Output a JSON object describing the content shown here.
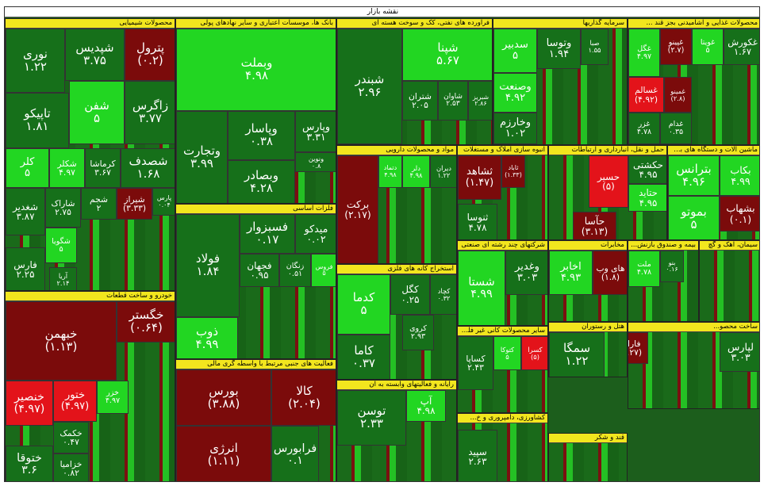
{
  "title": "نقشه بازار",
  "sectors": [
    {
      "name": "محصولات شیمیایی",
      "tiles": [
        {
          "name": "پترول",
          "change": "(۰.۲)",
          "color": "#7b0b0b"
        },
        {
          "name": "شپدیس",
          "change": "۳.۷۵",
          "color": "#16701a"
        },
        {
          "name": "نوری",
          "change": "۱.۲۲",
          "color": "#16701a"
        },
        {
          "name": "تاپیکو",
          "change": "۱.۸۱",
          "color": "#16701a"
        },
        {
          "name": "شفن",
          "change": "۵",
          "color": "#22d622"
        },
        {
          "name": "زاگرس",
          "change": "۳.۷۷",
          "color": "#16701a"
        },
        {
          "name": "کلر",
          "change": "۵",
          "color": "#22d622"
        },
        {
          "name": "شکلر",
          "change": "۴.۹۷",
          "color": "#22d622"
        },
        {
          "name": "کرماشا",
          "change": "۳.۶۷",
          "color": "#16701a"
        },
        {
          "name": "شصدف",
          "change": "۱.۶۸",
          "color": "#16701a"
        },
        {
          "name": "شغدیر",
          "change": "۳.۸۷",
          "color": "#16701a"
        },
        {
          "name": "شاراک",
          "change": "۲.۷۵",
          "color": "#16701a"
        },
        {
          "name": "شجم",
          "change": "۲",
          "color": "#16701a"
        },
        {
          "name": "شیراز",
          "change": "(۳.۳۳)",
          "color": "#7b0b0b"
        },
        {
          "name": "پارس",
          "change": "۰.۰۴",
          "color": "#16701a"
        },
        {
          "name": "شگویا",
          "change": "۵",
          "color": "#22d622"
        },
        {
          "name": "فارس",
          "change": "۲.۲۵",
          "color": "#16701a"
        },
        {
          "name": "آریا",
          "change": "۲.۱۴",
          "color": "#16701a"
        }
      ]
    },
    {
      "name": "بانک ها، موسسات اعتباری و سایر نهادهای پولی",
      "tiles": [
        {
          "name": "وبملت",
          "change": "۴.۹۸",
          "color": "#22d622"
        },
        {
          "name": "وتجارت",
          "change": "۳.۹۹",
          "color": "#16701a"
        },
        {
          "name": "وپاسار",
          "change": "۰.۳۸",
          "color": "#16701a"
        },
        {
          "name": "وپارس",
          "change": "۳.۳۱",
          "color": "#16701a"
        },
        {
          "name": "وبصادر",
          "change": "۴.۲۸",
          "color": "#16701a"
        },
        {
          "name": "ونوین",
          "change": "۰.۸",
          "color": "#16701a"
        }
      ]
    },
    {
      "name": "فراورده های نفتی، کک و سوخت هسته ای",
      "tiles": [
        {
          "name": "شبندر",
          "change": "۲.۹۶",
          "color": "#16701a"
        },
        {
          "name": "شپنا",
          "change": "۵.۶۷",
          "color": "#22d622"
        },
        {
          "name": "شتران",
          "change": "۲.۰۵",
          "color": "#16701a"
        },
        {
          "name": "شاوان",
          "change": "۲.۵۳",
          "color": "#16701a"
        },
        {
          "name": "شبریز",
          "change": "۲.۸۶",
          "color": "#16701a"
        }
      ]
    },
    {
      "name": "سرمایه گذاریها",
      "tiles": [
        {
          "name": "سدبیر",
          "change": "۵",
          "color": "#22d622"
        },
        {
          "name": "وتوسا",
          "change": "۱.۹۴",
          "color": "#16701a"
        },
        {
          "name": "صبا",
          "change": "۱.۵۵",
          "color": "#16701a"
        },
        {
          "name": "وصنعت",
          "change": "۴.۹۲",
          "color": "#22d622"
        },
        {
          "name": "وخارزم",
          "change": "۱.۰۲",
          "color": "#16701a"
        }
      ]
    },
    {
      "name": "محصولات غذایی و آشامیدنی بجز قند ...",
      "tiles": [
        {
          "name": "غگل",
          "change": "۴.۹۷",
          "color": "#22d622"
        },
        {
          "name": "غپینو",
          "change": "(۲.۷)",
          "color": "#7b0b0b"
        },
        {
          "name": "غویتا",
          "change": "۵",
          "color": "#22d622"
        },
        {
          "name": "غکورش",
          "change": "۱.۶۷",
          "color": "#16701a"
        },
        {
          "name": "غسالم",
          "change": "(۴.۹۲)",
          "color": "#e3131a"
        },
        {
          "name": "غمینو",
          "change": "(۲.۸)",
          "color": "#7b0b0b"
        },
        {
          "name": "غزر",
          "change": "۴.۷۸",
          "color": "#16701a"
        },
        {
          "name": "غدام",
          "change": "۰.۳۵",
          "color": "#16701a"
        }
      ]
    },
    {
      "name": "فلزات اساسی",
      "tiles": [
        {
          "name": "فولاد",
          "change": "۱.۸۴",
          "color": "#16701a"
        },
        {
          "name": "فسبزوار",
          "change": "۰.۱۷",
          "color": "#16701a"
        },
        {
          "name": "میدکو",
          "change": "۰.۰۲",
          "color": "#16701a"
        },
        {
          "name": "فجهان",
          "change": "۰.۹۵",
          "color": "#16701a"
        },
        {
          "name": "زنگان",
          "change": "۰.۵۱",
          "color": "#16701a"
        },
        {
          "name": "فروس",
          "change": "۵",
          "color": "#22d622"
        },
        {
          "name": "ذوب",
          "change": "۴.۹۹",
          "color": "#22d622"
        }
      ]
    },
    {
      "name": "خودرو و ساخت قطعات",
      "tiles": [
        {
          "name": "خبهمن",
          "change": "(۱.۱۳)",
          "color": "#7b0b0b"
        },
        {
          "name": "خگستر",
          "change": "(۰.۶۴)",
          "color": "#7b0b0b"
        },
        {
          "name": "خنصیر",
          "change": "(۴.۹۷)",
          "color": "#e3131a"
        },
        {
          "name": "ختور",
          "change": "(۴.۹۷)",
          "color": "#e3131a"
        },
        {
          "name": "خزر",
          "change": "۴.۹۷",
          "color": "#22d622"
        },
        {
          "name": "خکمک",
          "change": "۰.۴۷",
          "color": "#16701a"
        },
        {
          "name": "ختوقا",
          "change": "۳.۶",
          "color": "#16701a"
        },
        {
          "name": "خزامیا",
          "change": "۰.۸۲",
          "color": "#16701a"
        }
      ]
    },
    {
      "name": "فعالیت های جنبی مرتبط با واسطه گری مالی",
      "tiles": [
        {
          "name": "بورس",
          "change": "(۳.۸۸)",
          "color": "#7b0b0b"
        },
        {
          "name": "کالا",
          "change": "(۲.۰۴)",
          "color": "#7b0b0b"
        },
        {
          "name": "انرژی",
          "change": "(۱.۱۱)",
          "color": "#7b0b0b"
        },
        {
          "name": "فرابورس",
          "change": "۰.۱",
          "color": "#16701a"
        }
      ]
    },
    {
      "name": "مواد و محصولات دارویی",
      "tiles": [
        {
          "name": "برکت",
          "change": "(۲.۱۷)",
          "color": "#7b0b0b"
        },
        {
          "name": "دتماد",
          "change": "۴.۹۸",
          "color": "#22d622"
        },
        {
          "name": "دلر",
          "change": "۴.۹۸",
          "color": "#22d622"
        },
        {
          "name": "دیران",
          "change": "۱.۲۲",
          "color": "#16701a"
        }
      ]
    },
    {
      "name": "انبوه سازی املاک و مستغلات",
      "tiles": [
        {
          "name": "ثشاهد",
          "change": "(۱.۴۷)",
          "color": "#7b0b0b"
        },
        {
          "name": "ثاباد",
          "change": "(۱.۳۳)",
          "color": "#7b0b0b"
        },
        {
          "name": "ثنوسا",
          "change": "۴.۷۸",
          "color": "#16701a"
        }
      ]
    },
    {
      "name": "حمل و نقل، انبارداری و ارتباطات",
      "tiles": [
        {
          "name": "حسیر",
          "change": "(۵)",
          "color": "#e3131a"
        },
        {
          "name": "حکشتی",
          "change": "۴.۹۵",
          "color": "#16701a"
        },
        {
          "name": "حتاید",
          "change": "۴.۹۵",
          "color": "#22d622"
        },
        {
          "name": "حآسا",
          "change": "(۳.۱۳)",
          "color": "#7b0b0b"
        }
      ]
    },
    {
      "name": "ماشین آلات و دستگاه های برقی",
      "tiles": [
        {
          "name": "بترانس",
          "change": "۴.۹۶",
          "color": "#22d622"
        },
        {
          "name": "بکاب",
          "change": "۴.۹۹",
          "color": "#22d622"
        },
        {
          "name": "بموتو",
          "change": "۵",
          "color": "#22d622"
        },
        {
          "name": "بشهاب",
          "change": "(۰.۱)",
          "color": "#7b0b0b"
        }
      ]
    },
    {
      "name": "استخراج کانه های فلزی",
      "tiles": [
        {
          "name": "کدما",
          "change": "۵",
          "color": "#22d622"
        },
        {
          "name": "کگل",
          "change": "۰.۲۵",
          "color": "#16701a"
        },
        {
          "name": "کچاد",
          "change": "۰.۳۲",
          "color": "#16701a"
        },
        {
          "name": "کروی",
          "change": "۲.۹۳",
          "color": "#16701a"
        },
        {
          "name": "کاما",
          "change": "۰.۳۷",
          "color": "#16701a"
        }
      ]
    },
    {
      "name": "شرکتهای چند رشته ای صنعتی",
      "tiles": [
        {
          "name": "شستا",
          "change": "۴.۹۹",
          "color": "#22d622"
        },
        {
          "name": "وغدیر",
          "change": "۳.۰۳",
          "color": "#16701a"
        }
      ]
    },
    {
      "name": "مخابرات",
      "tiles": [
        {
          "name": "اخابر",
          "change": "۴.۹۳",
          "color": "#22d622"
        },
        {
          "name": "های وب",
          "change": "(۱.۸)",
          "color": "#7b0b0b"
        }
      ]
    },
    {
      "name": "بیمه و صندوق بازنش...",
      "tiles": [
        {
          "name": "ملت",
          "change": "۴.۷۸",
          "color": "#22d622"
        },
        {
          "name": "بنو",
          "change": "۰.۱۶",
          "color": "#16701a"
        }
      ]
    },
    {
      "name": "سیمان، آهک و گچ",
      "tiles": []
    },
    {
      "name": "رایانه و فعالیتهای وابسته به آن",
      "tiles": [
        {
          "name": "توسن",
          "change": "۲.۳۳",
          "color": "#16701a"
        },
        {
          "name": "آپ",
          "change": "۴.۹۸",
          "color": "#22d622"
        }
      ]
    },
    {
      "name": "سایر محصولات کانی غیر فلزی",
      "tiles": [
        {
          "name": "کساپا",
          "change": "۲.۴۳",
          "color": "#16701a"
        },
        {
          "name": "کتوکا",
          "change": "۵",
          "color": "#22d622"
        },
        {
          "name": "کسرا",
          "change": "(۵)",
          "color": "#e3131a"
        }
      ]
    },
    {
      "name": "هتل و رستوران",
      "tiles": [
        {
          "name": "سمگا",
          "change": "۱.۲۲",
          "color": "#16701a"
        }
      ]
    },
    {
      "name": "ساخت محصو...",
      "tiles": [
        {
          "name": "فاراک",
          "change": "(۱.۲۷)",
          "color": "#7b0b0b"
        },
        {
          "name": "لپارس",
          "change": "۳.۰۳",
          "color": "#16701a"
        }
      ]
    },
    {
      "name": "کشاورزی، دامپروری و خ...",
      "tiles": [
        {
          "name": "سپید",
          "change": "۲.۶۳",
          "color": "#16701a"
        }
      ]
    },
    {
      "name": "قند و شکر",
      "tiles": []
    }
  ]
}
